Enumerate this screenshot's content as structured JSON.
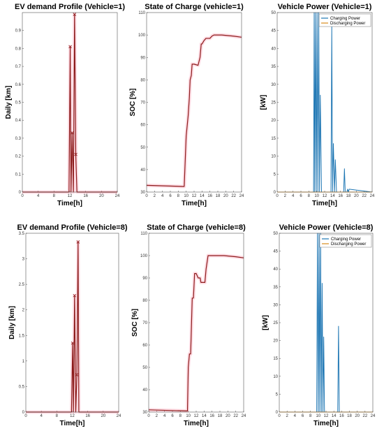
{
  "chart_data": [
    {
      "id": "ev-demand-1",
      "type": "line",
      "title": "EV demand Profile (Vehicle=1)",
      "xlabel": "Time[h]",
      "ylabel": "Daily [km]",
      "xlim": [
        0,
        24
      ],
      "ylim": [
        0,
        1
      ],
      "xticks": [
        0,
        4,
        8,
        12,
        16,
        20,
        24
      ],
      "yticks": [
        0,
        0.1,
        0.2,
        0.3,
        0.4,
        0.5,
        0.6,
        0.7,
        0.8,
        0.9
      ],
      "series": [
        {
          "color": "#8b1a1a",
          "glow": "#ff9ab3",
          "x": [
            0,
            11.8,
            12.1,
            12.3,
            12.6,
            12.9,
            13.2,
            13.5,
            13.8,
            24
          ],
          "y": [
            0,
            0,
            0.81,
            0,
            0.33,
            0,
            0.99,
            0.21,
            0,
            0
          ],
          "markers": [
            [
              12.1,
              0.81
            ],
            [
              12.6,
              0.33
            ],
            [
              13.2,
              0.99
            ],
            [
              13.5,
              0.21
            ]
          ]
        }
      ]
    },
    {
      "id": "soc-1",
      "type": "line",
      "title": "State of Charge (vehicle=1)",
      "xlabel": "Time[h]",
      "ylabel": "SOC [%]",
      "xlim": [
        0,
        24
      ],
      "ylim": [
        30,
        110
      ],
      "xticks": [
        0,
        2,
        4,
        6,
        8,
        10,
        12,
        14,
        16,
        18,
        20,
        22,
        24
      ],
      "yticks": [
        30,
        40,
        50,
        60,
        70,
        80,
        90,
        100,
        110
      ],
      "series": [
        {
          "color": "#8b1a1a",
          "glow": "#ff9ab3",
          "x": [
            0,
            9,
            9.5,
            10,
            10.5,
            10.8,
            11,
            11.3,
            11.5,
            12,
            13,
            13.5,
            13.8,
            14,
            14.5,
            15,
            16,
            16.5,
            17,
            19,
            22,
            24
          ],
          "y": [
            33,
            32.5,
            32.5,
            55,
            64,
            72,
            80,
            82,
            87,
            87,
            86.5,
            90,
            96,
            96,
            97.5,
            98.5,
            98.5,
            99.5,
            100,
            100,
            99.5,
            99
          ]
        }
      ]
    },
    {
      "id": "power-1",
      "type": "line",
      "title": "Vehicle Power (Vehicle=1)",
      "xlabel": "Time[h]",
      "ylabel": "[kW]",
      "xlim": [
        0,
        24
      ],
      "ylim": [
        0,
        50
      ],
      "xticks": [
        0,
        2,
        4,
        6,
        8,
        10,
        12,
        14,
        16,
        18,
        20,
        22,
        24
      ],
      "yticks": [
        0,
        5,
        10,
        15,
        20,
        25,
        30,
        35,
        40,
        45,
        50
      ],
      "legend": [
        "Charging Power",
        "Discharging Power"
      ],
      "legend_position": "top-right",
      "series": [
        {
          "name": "Charging Power",
          "color": "#1f77b4",
          "x": [
            0,
            9.2,
            9.35,
            9.5,
            9.7,
            9.9,
            10.1,
            10.3,
            10.5,
            10.7,
            10.9,
            11.2,
            11.5,
            13.6,
            13.8,
            14,
            14.2,
            14.5,
            14.7,
            15,
            16.8,
            17,
            17.2,
            17.6,
            17.8,
            18,
            18.2,
            24
          ],
          "y": [
            0,
            0,
            50,
            0,
            50,
            0,
            50,
            0,
            50,
            0,
            27,
            0,
            0,
            0,
            46,
            0,
            13.5,
            0,
            9,
            0,
            0,
            6.5,
            0,
            0,
            0.8,
            0,
            0.8,
            0
          ]
        },
        {
          "name": "Discharging Power",
          "color": "#d98c1a",
          "x": [
            0,
            24
          ],
          "y": [
            0,
            0
          ]
        }
      ]
    },
    {
      "id": "ev-demand-8",
      "type": "line",
      "title": "EV demand Profile (Vehicle=8)",
      "xlabel": "Time[h]",
      "ylabel": "Daily [km]",
      "xlim": [
        0,
        24
      ],
      "ylim": [
        0,
        3.5
      ],
      "xticks": [
        0,
        4,
        8,
        12,
        16,
        20,
        24
      ],
      "yticks": [
        0,
        0.5,
        1,
        1.5,
        2,
        2.5,
        3,
        3.5
      ],
      "series": [
        {
          "color": "#8b1a1a",
          "glow": "#ff9ab3",
          "x": [
            0,
            11.8,
            12.1,
            12.3,
            12.6,
            12.9,
            13.2,
            13.5,
            13.7,
            24
          ],
          "y": [
            0,
            0,
            1.35,
            0,
            2.28,
            0,
            0.73,
            3.33,
            0,
            0
          ],
          "markers": [
            [
              12.1,
              1.35
            ],
            [
              12.6,
              2.28
            ],
            [
              13.2,
              0.73
            ],
            [
              13.5,
              3.33
            ]
          ]
        }
      ]
    },
    {
      "id": "soc-8",
      "type": "line",
      "title": "State of Charge (vehicle=8)",
      "xlabel": "Time[h]",
      "ylabel": "SOC [%]",
      "xlim": [
        0,
        24
      ],
      "ylim": [
        30,
        110
      ],
      "xticks": [
        0,
        2,
        4,
        6,
        8,
        10,
        12,
        14,
        16,
        18,
        20,
        22,
        24
      ],
      "yticks": [
        30,
        40,
        50,
        60,
        70,
        80,
        90,
        100,
        110
      ],
      "series": [
        {
          "color": "#8b1a1a",
          "glow": "#ff9ab3",
          "x": [
            0,
            9.5,
            9.8,
            10,
            10.3,
            10.6,
            11,
            11.3,
            11.6,
            12,
            12.5,
            13,
            13.2,
            14,
            14.2,
            14.5,
            15,
            16,
            19,
            22,
            24
          ],
          "y": [
            31,
            30.5,
            30.5,
            50,
            56,
            56,
            81,
            81,
            92,
            92,
            90,
            90,
            88,
            88,
            88,
            94,
            100,
            100,
            100,
            99.5,
            99
          ]
        }
      ]
    },
    {
      "id": "power-8",
      "type": "line",
      "title": "Vehicle Power (Vehicle=8)",
      "xlabel": "Time[h]",
      "ylabel": "[kW]",
      "xlim": [
        0,
        24
      ],
      "ylim": [
        0,
        50
      ],
      "xticks": [
        0,
        2,
        4,
        6,
        8,
        10,
        12,
        14,
        16,
        18,
        20,
        22,
        24
      ],
      "yticks": [
        0,
        5,
        10,
        15,
        20,
        25,
        30,
        35,
        40,
        45,
        50
      ],
      "legend": [
        "Charging Power",
        "Discharging Power"
      ],
      "legend_position": "top-right",
      "series": [
        {
          "name": "Charging Power",
          "color": "#1f77b4",
          "x": [
            0,
            9.6,
            9.8,
            10,
            10.2,
            10.4,
            10.6,
            10.8,
            11,
            11.2,
            11.4,
            11.6,
            15,
            15.2,
            15.4,
            24
          ],
          "y": [
            0,
            0,
            50,
            0,
            50,
            0,
            50,
            0,
            36,
            0,
            21,
            0,
            0,
            24,
            0,
            0
          ]
        },
        {
          "name": "Discharging Power",
          "color": "#d98c1a",
          "x": [
            0,
            24
          ],
          "y": [
            0,
            0
          ]
        }
      ]
    }
  ]
}
